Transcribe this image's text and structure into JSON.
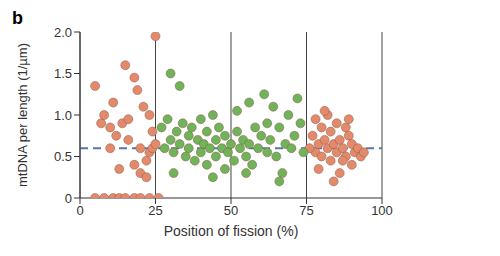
{
  "chart_data": {
    "type": "scatter",
    "title": "b",
    "x_label": "Position of fission (%)",
    "y_label": "mtDNA per length (1/µm)",
    "xlim": [
      0,
      100
    ],
    "xticks": [
      0,
      25,
      50,
      75,
      100
    ],
    "ylim": [
      0,
      2.0
    ],
    "yticks": [
      0,
      0.5,
      {
        "value": 1.0,
        "label": "1.0"
      },
      1.5,
      {
        "value": 2.0,
        "label": "2.0"
      }
    ],
    "grid": true,
    "marker": "circle",
    "mean": 0.6,
    "mean_line_style": "dashed",
    "series": [
      {
        "color": "#e48a6c",
        "x": [
          5,
          7,
          8,
          10,
          11,
          12,
          14,
          15,
          16,
          18,
          19,
          20,
          21,
          22,
          23,
          24,
          18,
          20,
          22,
          10,
          13,
          16,
          23,
          24,
          25,
          5,
          8,
          11,
          13,
          15,
          18,
          20,
          23,
          26,
          25,
          77,
          78,
          78,
          79,
          80,
          80,
          81,
          82,
          82,
          83,
          83,
          84,
          85,
          85,
          86,
          86,
          87,
          88,
          88,
          89,
          90,
          90,
          91,
          92,
          93,
          79,
          81,
          84,
          87,
          89,
          76,
          94
        ],
        "values": [
          1.35,
          0.9,
          1.0,
          0.85,
          1.15,
          0.75,
          0.9,
          1.6,
          0.7,
          1.45,
          1.3,
          0.6,
          1.1,
          0.45,
          0.55,
          0.6,
          0.4,
          0.3,
          0.25,
          0.6,
          0.35,
          0.95,
          1.0,
          0.8,
          0.65,
          0,
          0,
          0,
          0,
          0,
          0,
          0,
          0,
          0,
          1.95,
          0.75,
          0.55,
          0.95,
          0.65,
          0.5,
          0.85,
          0.7,
          0.6,
          1.0,
          0.45,
          0.8,
          0.65,
          0.55,
          0.9,
          0.7,
          0.3,
          0.6,
          0.85,
          0.5,
          0.75,
          0.65,
          0.4,
          0.55,
          0.6,
          0.5,
          0.35,
          1.05,
          0.2,
          0.45,
          0.95,
          0.6,
          0.55
        ]
      },
      {
        "color": "#6fb35a",
        "x": [
          27,
          28,
          29,
          30,
          30,
          31,
          32,
          33,
          33,
          34,
          35,
          36,
          36,
          37,
          38,
          39,
          40,
          40,
          41,
          42,
          42,
          43,
          44,
          45,
          45,
          46,
          47,
          48,
          48,
          49,
          50,
          51,
          52,
          52,
          53,
          54,
          55,
          56,
          56,
          57,
          58,
          59,
          60,
          61,
          62,
          62,
          63,
          64,
          65,
          66,
          67,
          68,
          69,
          70,
          71,
          72,
          73,
          74,
          31,
          44,
          55,
          66
        ],
        "values": [
          0.85,
          0.6,
          0.95,
          0.7,
          1.5,
          0.55,
          0.8,
          0.65,
          1.35,
          0.9,
          0.5,
          0.75,
          0.6,
          0.85,
          0.45,
          0.7,
          0.95,
          0.55,
          0.65,
          0.8,
          0.4,
          0.6,
          1.0,
          0.7,
          0.5,
          0.85,
          0.6,
          0.35,
          0.75,
          0.55,
          0.65,
          0.45,
          0.8,
          1.05,
          0.6,
          0.7,
          0.5,
          1.15,
          0.65,
          0.4,
          0.85,
          0.6,
          0.75,
          1.25,
          0.55,
          0.9,
          0.7,
          1.1,
          0.5,
          0.85,
          0.3,
          0.65,
          1.0,
          0.6,
          0.75,
          1.2,
          0.9,
          0.55,
          0.3,
          0.25,
          0.3,
          0.2
        ]
      }
    ]
  }
}
